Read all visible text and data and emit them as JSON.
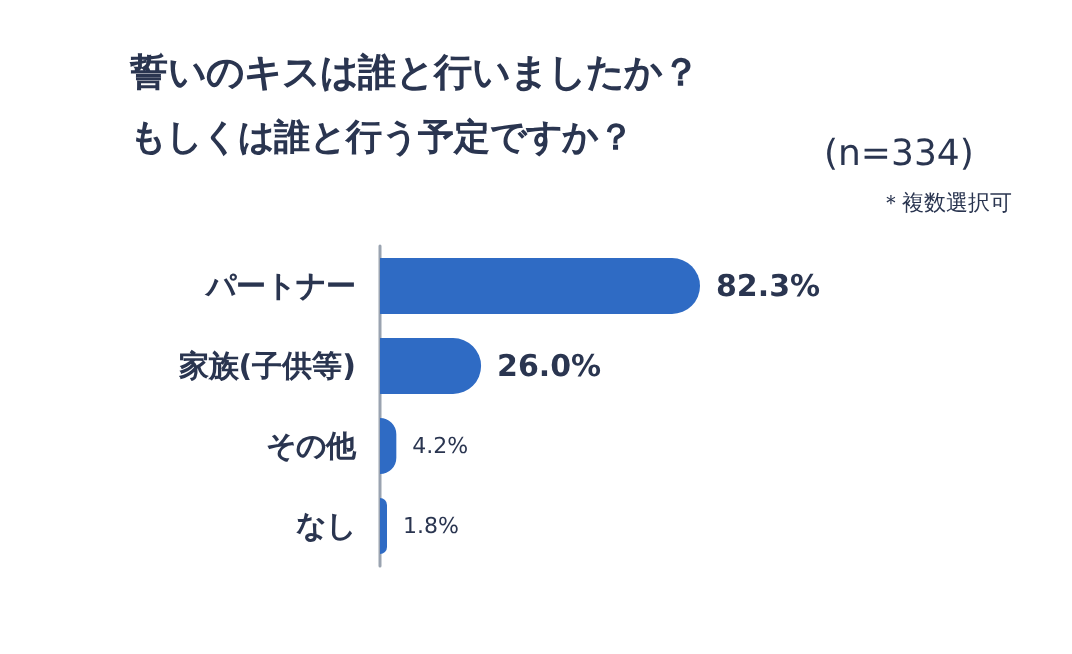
{
  "chart_data": {
    "type": "bar",
    "orientation": "horizontal",
    "title": "誓いのキスは誰と行いましたか？",
    "subtitle": "もしくは誰と行う予定ですか？",
    "annotations": [
      "(n=334)",
      "＊複数選択可"
    ],
    "categories": [
      "パートナー",
      "家族(子供等)",
      "その他",
      "なし"
    ],
    "values": [
      82.3,
      26.0,
      4.2,
      1.8
    ],
    "value_labels": [
      "82.3%",
      "26.0%",
      "4.2%",
      "1.8%"
    ],
    "color": "#2f6bc4"
  }
}
